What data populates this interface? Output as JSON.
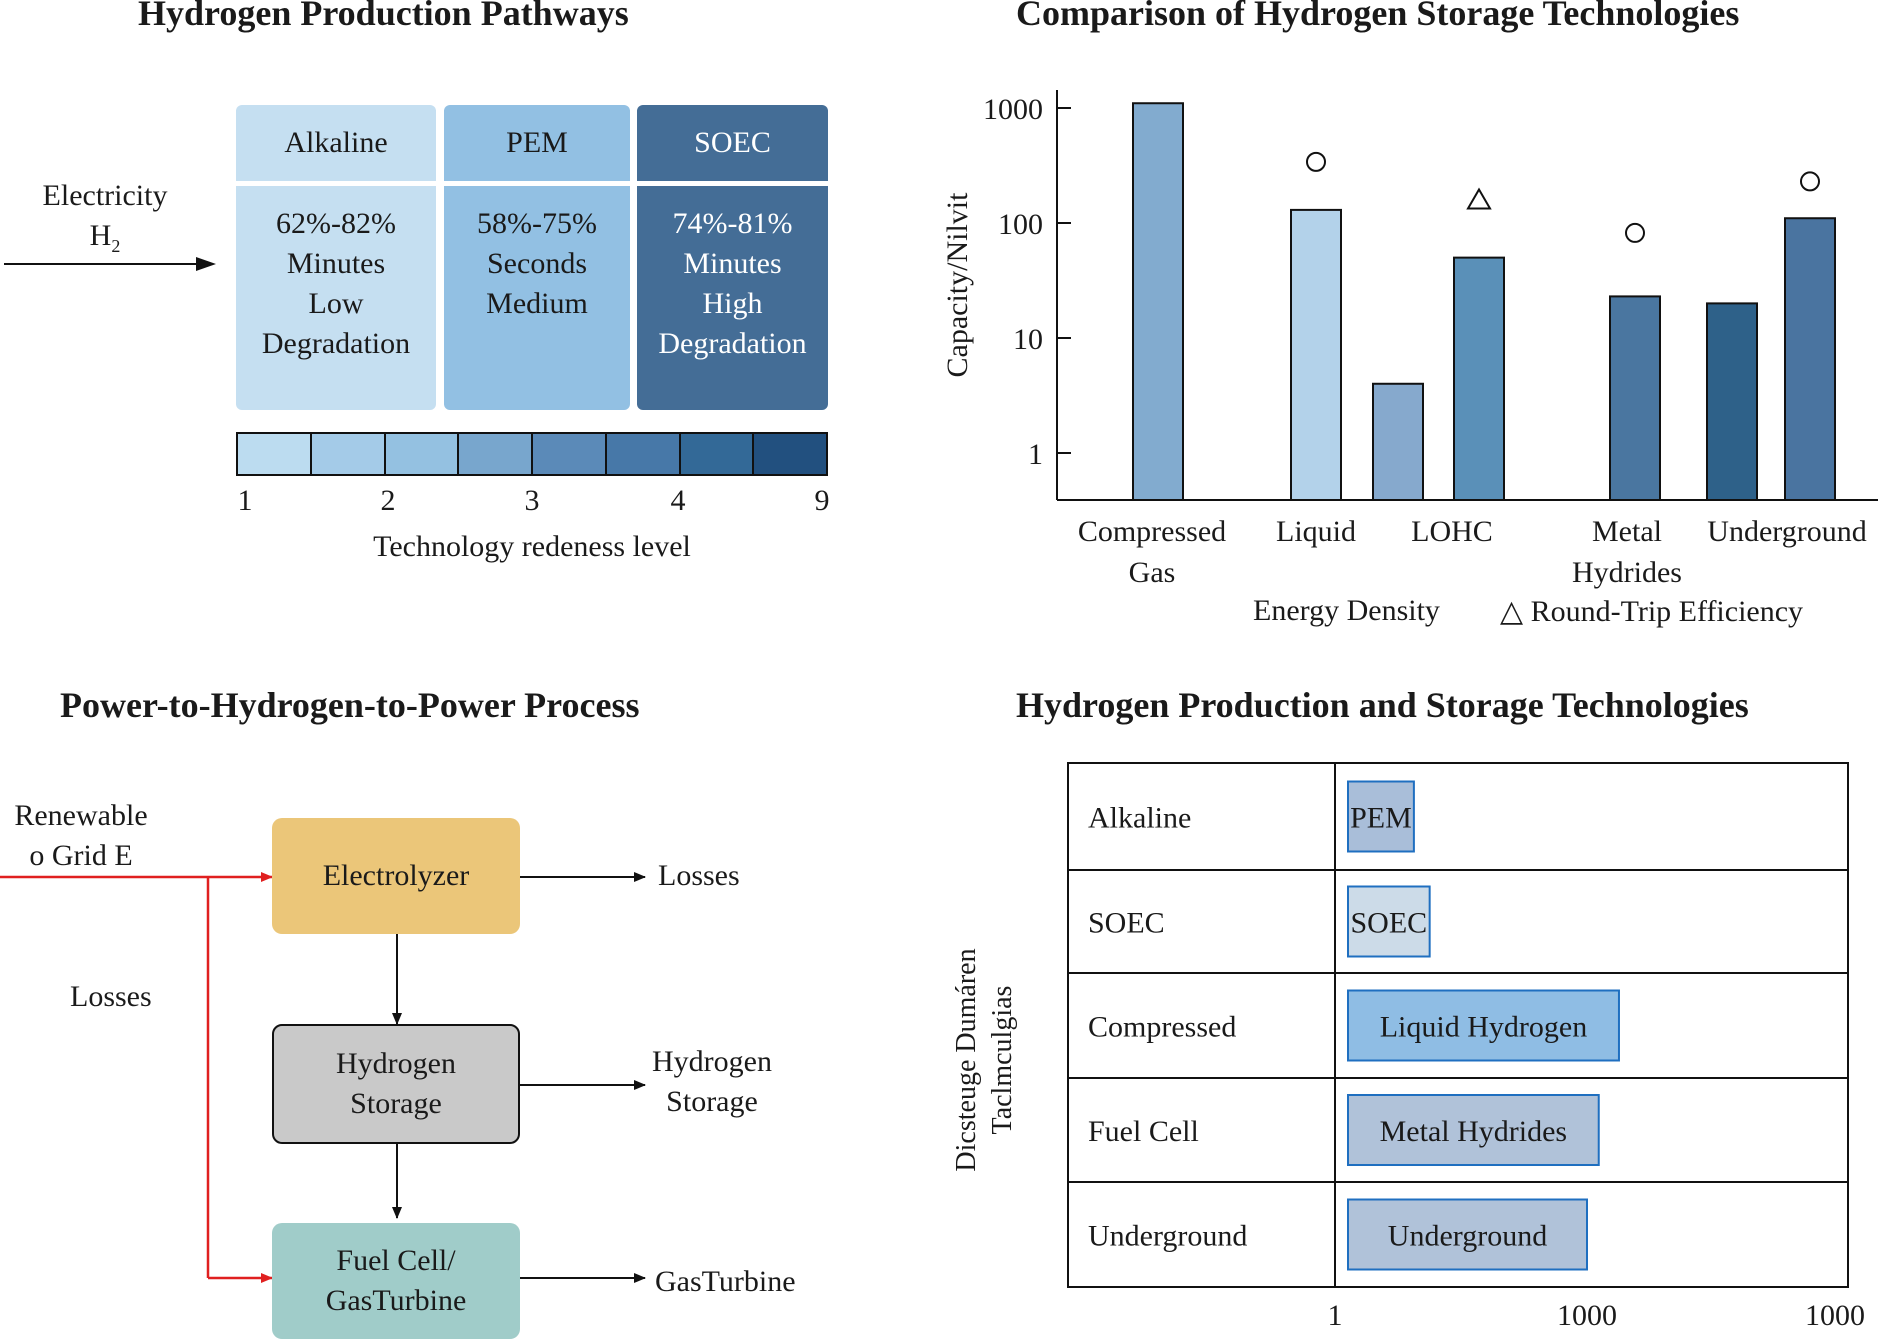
{
  "panel_a": {
    "title": "Hydrogen Production Pathways",
    "input": {
      "line1": "Electricity",
      "line2": "H",
      "subscript": "2"
    },
    "columns": [
      {
        "name": "Alkaline",
        "lines": [
          "62%-82%",
          "Minutes",
          "Low",
          "Degradation"
        ]
      },
      {
        "name": "PEM",
        "lines": [
          "58%-75%",
          "Seconds",
          "Medium"
        ]
      },
      {
        "name": "SOEC",
        "lines": [
          "74%-81%",
          "Minutes",
          "High",
          "Degradation"
        ]
      }
    ],
    "colors": {
      "col_fill": [
        "#c5dff1",
        "#92c0e3",
        "#446d96"
      ],
      "col_text": [
        "#1a1a1a",
        "#1a1a1a",
        "#ffffff"
      ],
      "scale": [
        "#bcdcf0",
        "#a4cbe8",
        "#94c1e1",
        "#78a6cd",
        "#5b8ab8",
        "#4778a8",
        "#336997",
        "#22507f"
      ]
    },
    "scale_ticks": [
      "1",
      "2",
      "3",
      "4",
      "9"
    ],
    "scale_label": "Technology redeness level"
  },
  "panel_b": {
    "title": "Comparison of Hydrogen Storage Technologies",
    "legend": {
      "energy": "Energy Density",
      "rte": "△ Round-Trip Efficiency"
    }
  },
  "chart_data": {
    "type": "bar",
    "title": "Comparison of Hydrogen Storage Technologies",
    "ylabel": "Capacity/Nilvit",
    "yscale": "log",
    "ylim": [
      0.7,
      3000
    ],
    "yticks": [
      "1",
      "10",
      "100",
      "1000"
    ],
    "categories": [
      "Compressed Gas",
      "Liquid",
      "LOHC",
      "Metal Hydrides",
      "Underground"
    ],
    "category_labels": [
      [
        "Compressed",
        "Gas"
      ],
      [
        "Liquid"
      ],
      [
        "LOHC"
      ],
      [
        "Metal",
        "Hydrides"
      ],
      [
        "Underground"
      ]
    ],
    "bars": [
      {
        "category": "Compressed Gas",
        "value": 1100,
        "color": "#82abcf"
      },
      {
        "category": "Liquid",
        "value": 130,
        "color": "#b3d2ea"
      },
      {
        "category": "LOHC",
        "value": 4,
        "color": "#86a9cd"
      },
      {
        "category": "LOHC",
        "value": 50,
        "color": "#5a90b8"
      },
      {
        "category": "Metal Hydrides",
        "value": 23,
        "color": "#4a76a0"
      },
      {
        "category": "Underground",
        "value": 20,
        "color": "#2e6189"
      },
      {
        "category": "Underground",
        "value": 110,
        "color": "#4a74a0"
      }
    ],
    "markers": [
      {
        "bar": 1,
        "shape": "circle",
        "value": 340
      },
      {
        "bar": 3,
        "shape": "triangle",
        "value": 160
      },
      {
        "bar": 4,
        "shape": "circle",
        "value": 82
      },
      {
        "bar": 6,
        "shape": "circle",
        "value": 230
      }
    ]
  },
  "panel_c": {
    "title": "Power-to-Hydrogen-to-Power Process",
    "source": [
      "Renewable",
      "o Grid E"
    ],
    "losses_left": "Losses",
    "boxes": [
      {
        "lines": [
          "Electrolyzer"
        ],
        "fill": "#ebc679"
      },
      {
        "lines": [
          "Hydrogen",
          "Storage"
        ],
        "fill": "#c9c9c9"
      },
      {
        "lines": [
          "Fuel Cell/",
          "GasTurbine"
        ],
        "fill": "#a0ccc9"
      }
    ],
    "outputs": [
      [
        "Losses"
      ],
      [
        "Hydrogen",
        "Storage"
      ],
      [
        "GasTurbine"
      ]
    ],
    "colors": {
      "red_line": "#e02020"
    }
  },
  "panel_d": {
    "title": "Hydrogen Production and Storage Technologies",
    "ylabel": [
      "Dicsteuge Dumáren",
      "Taclmculgias"
    ],
    "rows": [
      {
        "label": "Alkaline",
        "bar": "PEM",
        "fill": "#a9bed9",
        "stroke": "#1f6fc0",
        "value": 7
      },
      {
        "label": "SOEC",
        "bar": "SOEC",
        "fill": "#ccdbe8",
        "stroke": "#1f6fc0",
        "value": 11
      },
      {
        "label": "Compressed",
        "bar": "Liquid Hydrogen",
        "fill": "#8fbde4",
        "stroke": "#1f6fc0",
        "value": 2500
      },
      {
        "label": "Fuel Cell",
        "bar": "Metal Hydrides",
        "fill": "#b0c2d9",
        "stroke": "#1f6fc0",
        "value": 1400
      },
      {
        "label": "Underground",
        "bar": "Underground",
        "fill": "#b0c2d9",
        "stroke": "#1f6fc0",
        "value": 1000
      }
    ],
    "x_ticks": [
      "1",
      "1000",
      "1000"
    ]
  }
}
